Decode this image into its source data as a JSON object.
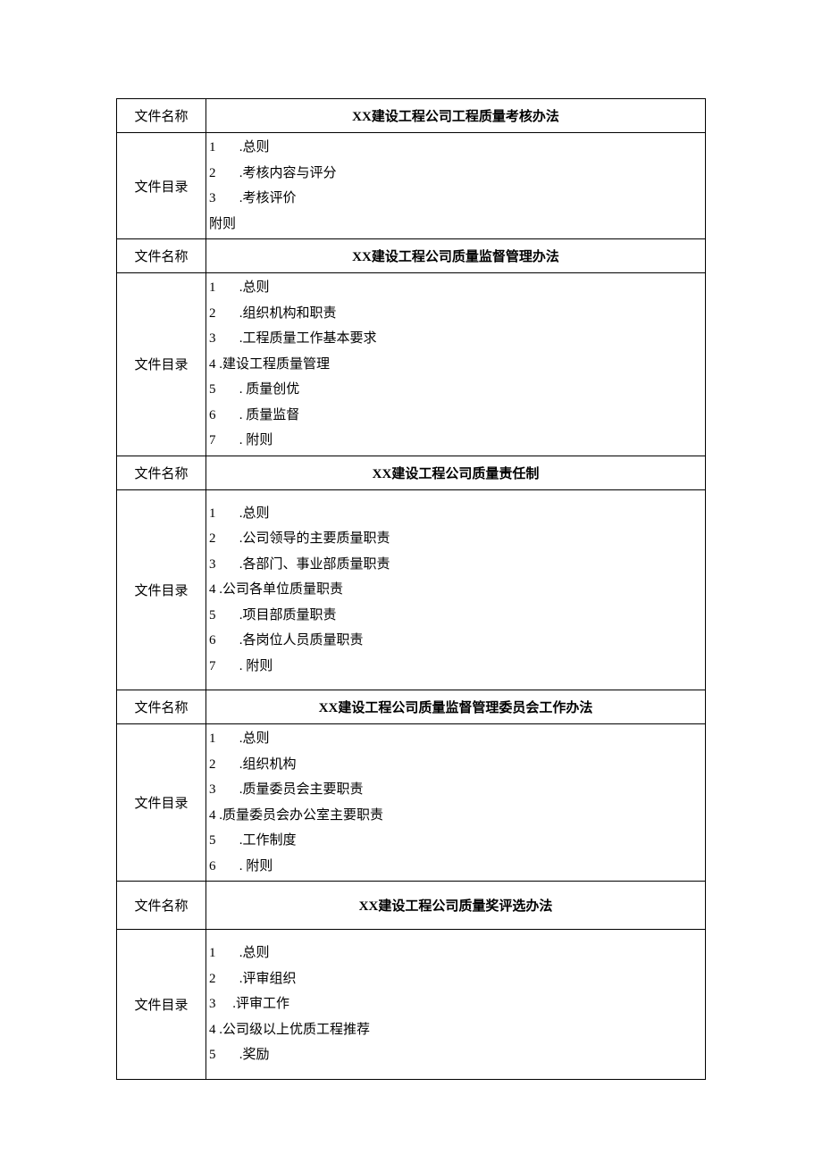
{
  "labels": {
    "file_name": "文件名称",
    "file_toc": "文件目录"
  },
  "sections": [
    {
      "title": "XX建设工程公司工程质量考核办法",
      "padded": false,
      "items": [
        {
          "num": "1",
          "indent": "wide",
          "text": ".总则"
        },
        {
          "num": "2",
          "indent": "wide",
          "text": ".考核内容与评分"
        },
        {
          "num": "3",
          "indent": "wide",
          "text": ".考核评价"
        },
        {
          "num": "",
          "indent": "none",
          "text": "附则"
        }
      ]
    },
    {
      "title": "XX建设工程公司质量监督管理办法",
      "padded": false,
      "items": [
        {
          "num": "1",
          "indent": "wide",
          "text": ".总则"
        },
        {
          "num": "2",
          "indent": "wide",
          "text": ".组织机构和职责"
        },
        {
          "num": "3",
          "indent": "wide",
          "text": ".工程质量工作基本要求"
        },
        {
          "num": "4",
          "indent": "tight",
          "text": ".建设工程质量管理"
        },
        {
          "num": "5",
          "indent": "wide",
          "text": ". 质量创优"
        },
        {
          "num": "6",
          "indent": "wide",
          "text": ". 质量监督"
        },
        {
          "num": "7",
          "indent": "wide",
          "text": ". 附则"
        }
      ]
    },
    {
      "title": "XX建设工程公司质量责任制",
      "padded": true,
      "items": [
        {
          "num": "1",
          "indent": "wide",
          "text": ".总则"
        },
        {
          "num": "2",
          "indent": "wide",
          "text": ".公司领导的主要质量职责"
        },
        {
          "num": "3",
          "indent": "wide",
          "text": ".各部门、事业部质量职责"
        },
        {
          "num": "4",
          "indent": "tight",
          "text": ".公司各单位质量职责"
        },
        {
          "num": "5",
          "indent": "wide",
          "text": ".项目部质量职责"
        },
        {
          "num": "6",
          "indent": "wide",
          "text": ".各岗位人员质量职责"
        },
        {
          "num": "7",
          "indent": "wide",
          "text": ". 附则"
        }
      ]
    },
    {
      "title": "XX建设工程公司质量监督管理委员会工作办法",
      "padded": false,
      "items": [
        {
          "num": "1",
          "indent": "wide",
          "text": ".总则"
        },
        {
          "num": "2",
          "indent": "wide",
          "text": ".组织机构"
        },
        {
          "num": "3",
          "indent": "wide",
          "text": ".质量委员会主要职责"
        },
        {
          "num": "4",
          "indent": "tight",
          "text": ".质量委员会办公室主要职责"
        },
        {
          "num": "5",
          "indent": "wide",
          "text": ".工作制度"
        },
        {
          "num": "6",
          "indent": "wide",
          "text": ". 附则"
        }
      ]
    },
    {
      "title": "XX建设工程公司质量奖评选办法",
      "padded": true,
      "title_padded": true,
      "items": [
        {
          "num": "1",
          "indent": "wide",
          "text": ".总则"
        },
        {
          "num": "2",
          "indent": "wide",
          "text": ".评审组织"
        },
        {
          "num": "3",
          "indent": "mid",
          "text": ".评审工作"
        },
        {
          "num": "4",
          "indent": "tight",
          "text": ".公司级以上优质工程推荐"
        },
        {
          "num": "5",
          "indent": "wide",
          "text": ".奖励"
        }
      ]
    }
  ],
  "style": {
    "indent_wide": "       ",
    "indent_mid": "     ",
    "indent_tight": " "
  }
}
